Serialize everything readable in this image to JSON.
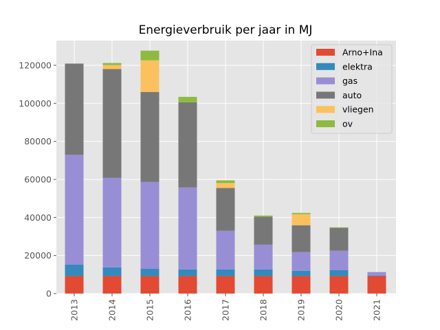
{
  "chart_data": {
    "type": "bar",
    "stacked": true,
    "title": "Energieverbruik per jaar in MJ",
    "xlabel": "",
    "ylabel": "",
    "categories": [
      "2013",
      "2014",
      "2015",
      "2016",
      "2017",
      "2018",
      "2019",
      "2020",
      "2021"
    ],
    "ylim": [
      0,
      133000
    ],
    "yticks": [
      0,
      20000,
      40000,
      60000,
      80000,
      100000,
      120000
    ],
    "grid": true,
    "legend_position": "top-right",
    "series": [
      {
        "name": "Arno+Ina",
        "color": "#E24A33",
        "values": [
          9200,
          9200,
          9200,
          9200,
          9200,
          9200,
          9200,
          9200,
          9200
        ]
      },
      {
        "name": "elektra",
        "color": "#348ABD",
        "values": [
          6000,
          4600,
          3800,
          3500,
          3500,
          3500,
          2800,
          3100,
          300
        ]
      },
      {
        "name": "gas",
        "color": "#988ED5",
        "values": [
          57700,
          47100,
          45700,
          43100,
          20300,
          13000,
          9800,
          10200,
          1800
        ]
      },
      {
        "name": "auto",
        "color": "#777777",
        "values": [
          48000,
          57100,
          47300,
          44700,
          22500,
          14600,
          14100,
          12000,
          0
        ]
      },
      {
        "name": "vliegen",
        "color": "#FBC15E",
        "values": [
          0,
          2100,
          16600,
          0,
          2600,
          0,
          5800,
          0,
          0
        ]
      },
      {
        "name": "ov",
        "color": "#8EBA42",
        "values": [
          0,
          1100,
          5100,
          2900,
          1400,
          700,
          700,
          300,
          0
        ]
      }
    ]
  }
}
